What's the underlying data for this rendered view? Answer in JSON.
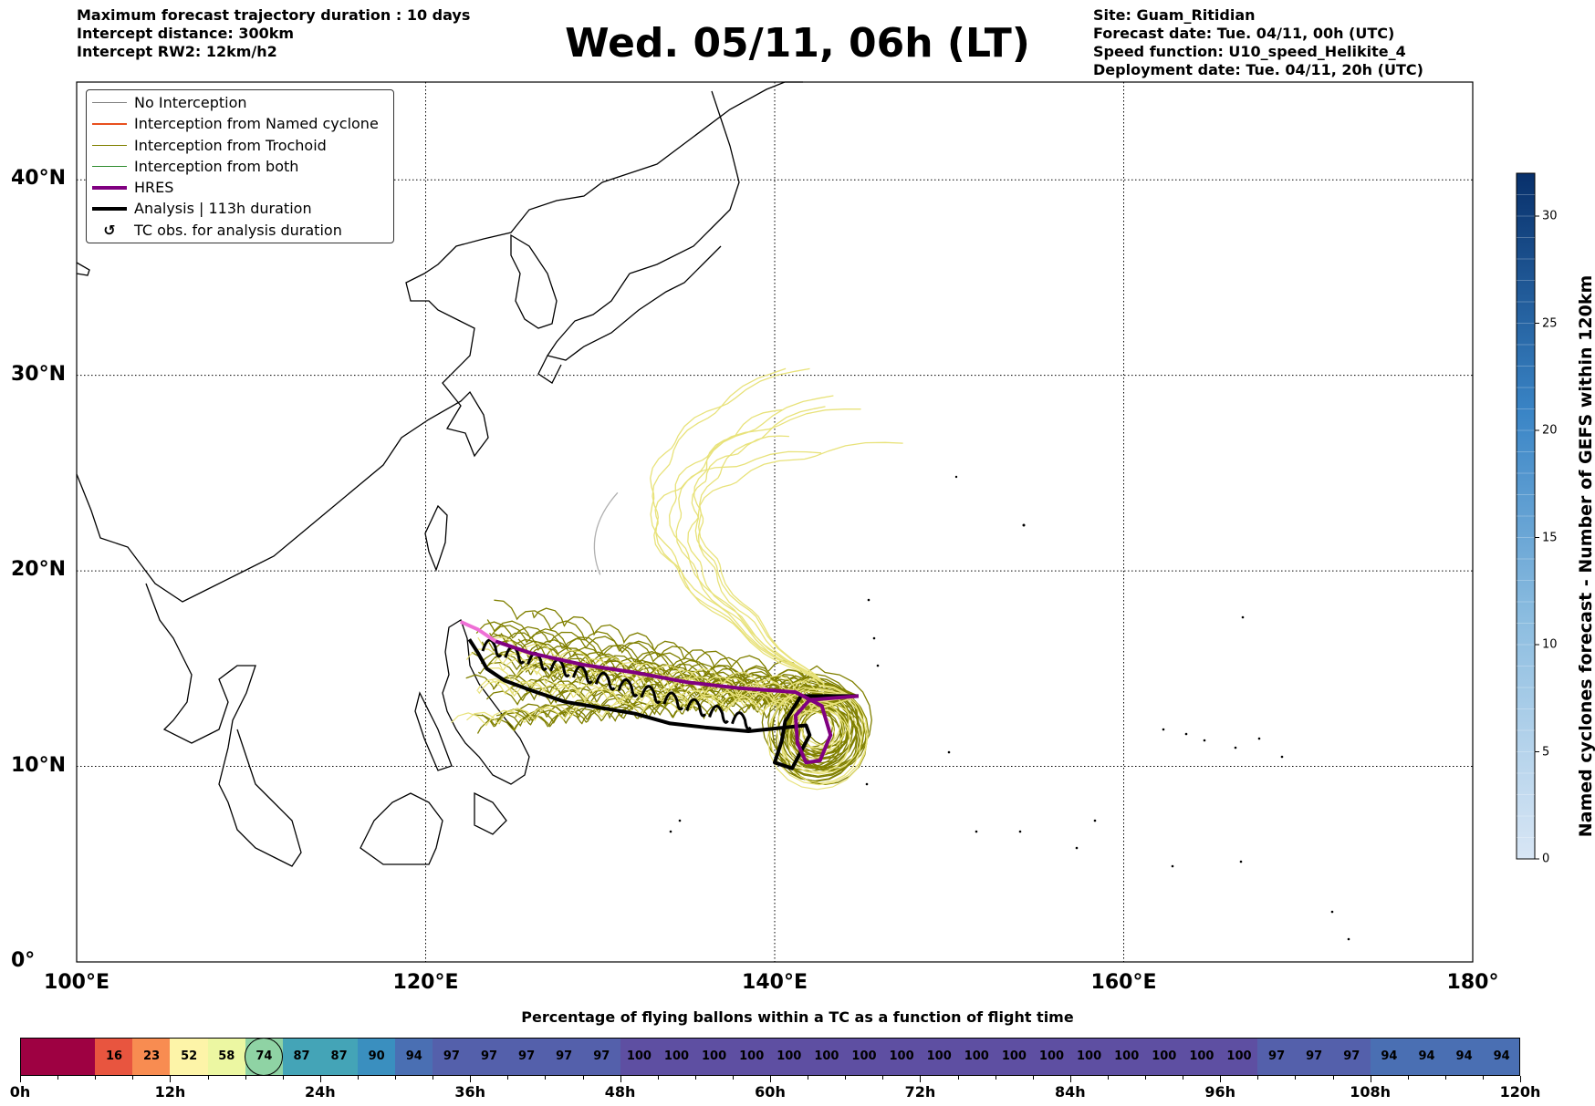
{
  "header_left": [
    "Maximum forecast trajectory duration : 10 days",
    "Intercept distance: 300km",
    "Intercept RW2: 12km/h2"
  ],
  "title": "Wed. 05/11, 06h (LT)",
  "header_right": [
    "Site: Guam_Ritidian",
    "Forecast date: Tue. 04/11, 00h (UTC)",
    "Speed function: U10_speed_Helikite_4",
    "Deployment date: Tue. 04/11, 20h (UTC)"
  ],
  "map": {
    "lon_range": [
      100,
      180
    ],
    "lat_range": [
      0,
      45
    ],
    "lon_ticks": [
      {
        "value": 100,
        "label": "100°E"
      },
      {
        "value": 120,
        "label": "120°E"
      },
      {
        "value": 140,
        "label": "140°E"
      },
      {
        "value": 160,
        "label": "160°E"
      },
      {
        "value": 180,
        "label": "180°"
      }
    ],
    "lat_ticks": [
      {
        "value": 0,
        "label": "0°"
      },
      {
        "value": 10,
        "label": "10°N"
      },
      {
        "value": 20,
        "label": "20°N"
      },
      {
        "value": 30,
        "label": "30°N"
      },
      {
        "value": 40,
        "label": "40°N"
      }
    ],
    "grid": "dotted",
    "legend_position": "upper-left",
    "legend": [
      {
        "label": "No Interception",
        "color": "#808080",
        "kind": "thin"
      },
      {
        "label": "Interception from Named cyclone",
        "color": "#e8501e",
        "kind": "thin"
      },
      {
        "label": "Interception from Trochoid",
        "color": "#808000",
        "kind": "thin"
      },
      {
        "label": "Interception from both",
        "color": "#2e8b2e",
        "kind": "thin"
      },
      {
        "label": "HRES",
        "color": "#800080",
        "kind": "thick"
      },
      {
        "label": "Analysis | 113h duration",
        "color": "#000000",
        "kind": "thick"
      },
      {
        "label": "TC obs. for analysis duration",
        "color": "#000000",
        "kind": "symbol"
      }
    ],
    "trajectory_colors": {
      "trochoid": "#808000",
      "faded": "#e8e27a",
      "none": "#b0b0b0",
      "hres": "#800080",
      "hres_faded": "#ee6fd5",
      "analysis": "#000000"
    },
    "launch_site": {
      "lon": 144.8,
      "lat": 13.6
    },
    "hres_track": [
      [
        144.8,
        13.6
      ],
      [
        142.0,
        13.4
      ],
      [
        141.2,
        12.6
      ],
      [
        141.3,
        11.2
      ],
      [
        141.8,
        10.2
      ],
      [
        142.6,
        10.3
      ],
      [
        143.2,
        11.6
      ],
      [
        142.7,
        13.1
      ],
      [
        141.2,
        13.8
      ],
      [
        138.0,
        14.0
      ],
      [
        135.0,
        14.3
      ],
      [
        132.0,
        14.8
      ],
      [
        129.0,
        15.2
      ],
      [
        126.0,
        15.8
      ],
      [
        124.0,
        16.4
      ],
      [
        123.0,
        17.0
      ],
      [
        122.5,
        17.2
      ],
      [
        122.0,
        17.4
      ]
    ],
    "analysis_track": [
      [
        144.8,
        13.6
      ],
      [
        141.5,
        13.6
      ],
      [
        140.6,
        12.3
      ],
      [
        140.4,
        11.3
      ],
      [
        140.0,
        10.2
      ],
      [
        141.0,
        9.9
      ],
      [
        142.0,
        11.6
      ],
      [
        141.8,
        12.1
      ],
      [
        138.5,
        11.8
      ],
      [
        136.0,
        12.0
      ],
      [
        134.0,
        12.2
      ],
      [
        132.0,
        12.7
      ],
      [
        130.0,
        13.0
      ],
      [
        128.0,
        13.3
      ],
      [
        126.0,
        13.9
      ],
      [
        124.5,
        14.4
      ],
      [
        123.5,
        15.0
      ],
      [
        123.0,
        15.8
      ],
      [
        122.5,
        16.5
      ]
    ]
  },
  "colorbar": {
    "label": "Named cyclones forecast - Number of GEFS within 120km",
    "min": 0,
    "max": 32,
    "ticks": [
      0,
      5,
      10,
      15,
      20,
      25,
      30
    ],
    "color_low": "#d8e6f5",
    "color_high": "#08306b"
  },
  "percentage_bar": {
    "title": "Percentage of flying ballons within a TC as a function of flight time",
    "hours_labels": [
      "0h",
      "12h",
      "24h",
      "36h",
      "48h",
      "60h",
      "72h",
      "84h",
      "96h",
      "108h",
      "120h"
    ],
    "step_hours": 3,
    "values": [
      null,
      null,
      16,
      23,
      52,
      58,
      74,
      87,
      87,
      90,
      94,
      97,
      97,
      97,
      97,
      97,
      100,
      100,
      100,
      100,
      100,
      100,
      100,
      100,
      100,
      100,
      100,
      100,
      100,
      100,
      100,
      100,
      100,
      97,
      97,
      97,
      94,
      94,
      94,
      94
    ],
    "highlight_index": 6,
    "low_color": "#9e0142"
  }
}
